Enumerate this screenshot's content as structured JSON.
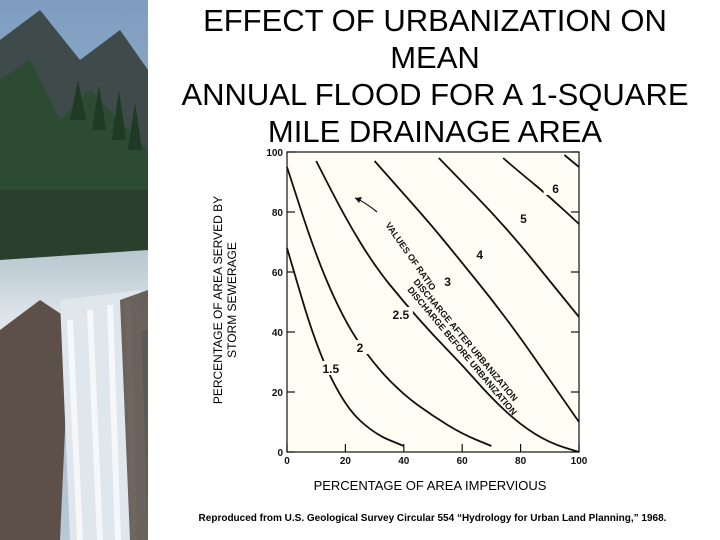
{
  "title": "EFFECT OF URBANIZATION ON MEAN\nANNUAL FLOOD FOR A 1-SQUARE MILE DRAINAGE AREA",
  "ylabel": "PERCENTAGE OF AREA SERVED BY\nSTORM SEWERAGE",
  "xlabel": "PERCENTAGE OF AREA IMPERVIOUS",
  "caption": "Reproduced from U.S. Geological Survey Circular 554 “Hydrology for Urban Land Planning,” 1968.",
  "chart_data": {
    "type": "line",
    "xlim": [
      0,
      100
    ],
    "ylim": [
      0,
      100
    ],
    "xticks": [
      0,
      20,
      40,
      60,
      80,
      100
    ],
    "yticks": [
      0,
      20,
      40,
      60,
      80,
      100
    ],
    "annotation_ratio": "VALUES OF RATIO",
    "annotation_discharge": "DISCHARGE AFTER URBANIZATION",
    "annotation_discharge2": "DISCHARGE BEFORE URBANIZATION",
    "series": [
      {
        "name": "1.5",
        "label_at": [
          15,
          27
        ],
        "points": [
          [
            0,
            68
          ],
          [
            10,
            35
          ],
          [
            20,
            15
          ],
          [
            30,
            6
          ],
          [
            40,
            2
          ]
        ]
      },
      {
        "name": "2",
        "label_at": [
          25,
          34
        ],
        "points": [
          [
            0,
            95
          ],
          [
            10,
            65
          ],
          [
            20,
            43
          ],
          [
            30,
            29
          ],
          [
            40,
            19
          ],
          [
            50,
            12
          ],
          [
            60,
            6
          ],
          [
            70,
            2
          ]
        ]
      },
      {
        "name": "2.5",
        "label_at": [
          39,
          45
        ],
        "points": [
          [
            10,
            97
          ],
          [
            20,
            78
          ],
          [
            30,
            62
          ],
          [
            40,
            50
          ],
          [
            50,
            39
          ],
          [
            60,
            29
          ],
          [
            70,
            18
          ],
          [
            80,
            9
          ],
          [
            90,
            3
          ],
          [
            100,
            0
          ]
        ]
      },
      {
        "name": "3",
        "label_at": [
          55,
          56
        ],
        "points": [
          [
            30,
            97
          ],
          [
            40,
            86
          ],
          [
            50,
            75
          ],
          [
            60,
            63
          ],
          [
            70,
            51
          ],
          [
            80,
            38
          ],
          [
            90,
            24
          ],
          [
            100,
            10
          ]
        ]
      },
      {
        "name": "4",
        "label_at": [
          66,
          65
        ],
        "points": [
          [
            52,
            98
          ],
          [
            60,
            90
          ],
          [
            70,
            80
          ],
          [
            80,
            69
          ],
          [
            90,
            57
          ],
          [
            100,
            45
          ]
        ]
      },
      {
        "name": "5",
        "label_at": [
          81,
          77
        ],
        "points": [
          [
            74,
            98
          ],
          [
            80,
            93
          ],
          [
            90,
            85
          ],
          [
            100,
            76
          ]
        ]
      },
      {
        "name": "6",
        "label_at": [
          92,
          87
        ],
        "points": [
          [
            95,
            99
          ],
          [
            100,
            95
          ]
        ]
      }
    ]
  }
}
